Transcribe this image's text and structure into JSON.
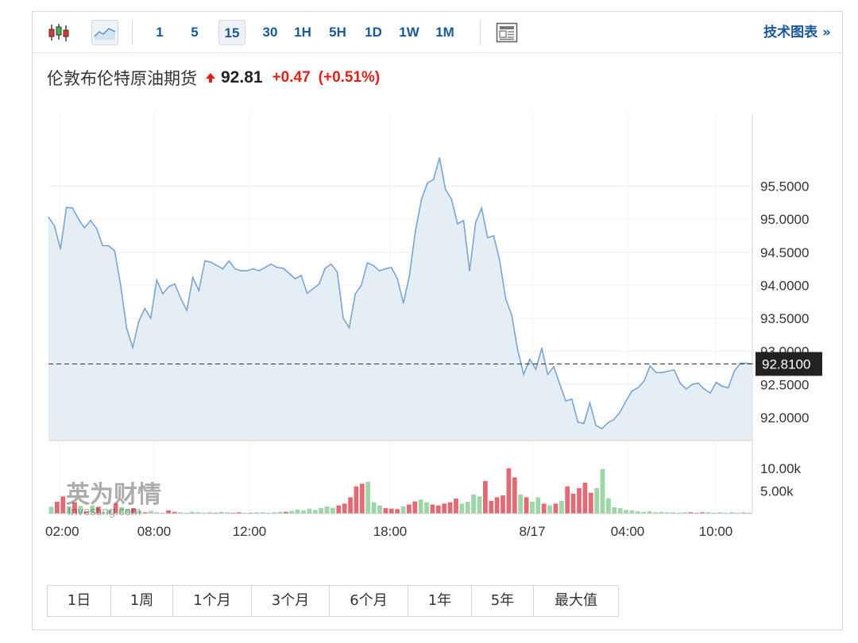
{
  "toolbar": {
    "intervals": [
      "1",
      "5",
      "15",
      "30",
      "1H",
      "5H",
      "1D",
      "1W",
      "1M"
    ],
    "active_interval": "15",
    "tech_chart_label": "技术图表 »"
  },
  "header": {
    "name": "伦敦布伦特原油期货",
    "price": "92.81",
    "change": "+0.47",
    "change_pct": "(+0.51%)"
  },
  "colors": {
    "line": "#7ba5cf",
    "area": "#e6eef5",
    "up": "#e06b74",
    "down": "#9fd6a8",
    "link": "#1d5896",
    "change": "#e0201b"
  },
  "watermark": {
    "cn": "英为财情",
    "en": "Investing.com"
  },
  "price_label": "92.8100",
  "ranges": [
    "1日",
    "1周",
    "1个月",
    "3个月",
    "6个月",
    "1年",
    "5年",
    "最大值"
  ],
  "chart_data": {
    "type": "line",
    "x_tick_labels": [
      "02:00",
      "08:00",
      "12:00",
      "18:00",
      "8/17",
      "04:00",
      "10:00"
    ],
    "y_tick_labels": [
      "95.5000",
      "95.0000",
      "94.5000",
      "94.0000",
      "93.5000",
      "93.0000",
      "92.5000",
      "92.0000"
    ],
    "ylim": [
      91.65,
      96.6
    ],
    "last_value": 92.81,
    "series": [
      {
        "values": [
          95.03,
          94.9,
          94.55,
          95.18,
          95.17,
          95.0,
          94.87,
          94.98,
          94.86,
          94.6,
          94.6,
          94.52,
          94.0,
          93.35,
          93.06,
          93.45,
          93.65,
          93.5,
          94.08,
          93.87,
          93.98,
          94.02,
          93.8,
          93.62,
          94.12,
          93.92,
          94.37,
          94.35,
          94.3,
          94.25,
          94.37,
          94.25,
          94.22,
          94.22,
          94.25,
          94.22,
          94.27,
          94.32,
          94.27,
          94.26,
          94.18,
          94.1,
          94.15,
          93.88,
          93.95,
          94.02,
          94.26,
          94.32,
          94.2,
          93.5,
          93.36,
          93.87,
          94.0,
          94.34,
          94.3,
          94.22,
          94.25,
          94.27,
          94.1,
          93.73,
          94.15,
          94.82,
          95.3,
          95.55,
          95.6,
          95.93,
          95.45,
          95.3,
          94.93,
          94.98,
          94.22,
          94.95,
          95.17,
          94.72,
          94.75,
          94.38,
          93.8,
          93.55,
          93.02,
          92.65,
          92.88,
          92.73,
          93.05,
          92.65,
          92.77,
          92.5,
          92.25,
          92.28,
          91.93,
          91.91,
          92.22,
          91.88,
          91.83,
          91.92,
          91.97,
          92.08,
          92.25,
          92.4,
          92.45,
          92.55,
          92.78,
          92.68,
          92.68,
          92.7,
          92.72,
          92.52,
          92.43,
          92.5,
          92.52,
          92.43,
          92.37,
          92.53,
          92.47,
          92.45,
          92.7,
          92.82,
          92.82,
          92.81
        ]
      }
    ],
    "volume": {
      "tick_labels": [
        "10.00k",
        "5.00k"
      ],
      "max": 14000,
      "bars": [
        {
          "v": 1500,
          "up": false
        },
        {
          "v": 2600,
          "up": true
        },
        {
          "v": 3800,
          "up": true
        },
        {
          "v": 1600,
          "up": false
        },
        {
          "v": 2500,
          "up": true
        },
        {
          "v": 1700,
          "up": false
        },
        {
          "v": 400,
          "up": true
        },
        {
          "v": 1800,
          "up": false
        },
        {
          "v": 1500,
          "up": true
        },
        {
          "v": 300,
          "up": false
        },
        {
          "v": 800,
          "up": false
        },
        {
          "v": 2200,
          "up": true
        },
        {
          "v": 1400,
          "up": false
        },
        {
          "v": 1000,
          "up": false
        },
        {
          "v": 1200,
          "up": true
        },
        {
          "v": 600,
          "up": false
        },
        {
          "v": 300,
          "up": true
        },
        {
          "v": 600,
          "up": false
        },
        {
          "v": 300,
          "up": false
        },
        {
          "v": 200,
          "up": false
        },
        {
          "v": 700,
          "up": true
        },
        {
          "v": 400,
          "up": true
        },
        {
          "v": 300,
          "up": false
        },
        {
          "v": 200,
          "up": false
        },
        {
          "v": 400,
          "up": false
        },
        {
          "v": 300,
          "up": false
        },
        {
          "v": 200,
          "up": false
        },
        {
          "v": 300,
          "up": false
        },
        {
          "v": 200,
          "up": true
        },
        {
          "v": 400,
          "up": false
        },
        {
          "v": 300,
          "up": false
        },
        {
          "v": 200,
          "up": true
        },
        {
          "v": 300,
          "up": true
        },
        {
          "v": 200,
          "up": false
        },
        {
          "v": 200,
          "up": true
        },
        {
          "v": 300,
          "up": false
        },
        {
          "v": 300,
          "up": false
        },
        {
          "v": 200,
          "up": false
        },
        {
          "v": 300,
          "up": false
        },
        {
          "v": 400,
          "up": false
        },
        {
          "v": 400,
          "up": true
        },
        {
          "v": 600,
          "up": false
        },
        {
          "v": 900,
          "up": false
        },
        {
          "v": 700,
          "up": false
        },
        {
          "v": 1100,
          "up": false
        },
        {
          "v": 800,
          "up": false
        },
        {
          "v": 1200,
          "up": false
        },
        {
          "v": 1600,
          "up": false
        },
        {
          "v": 1300,
          "up": false
        },
        {
          "v": 1800,
          "up": true
        },
        {
          "v": 2200,
          "up": true
        },
        {
          "v": 3600,
          "up": true
        },
        {
          "v": 6000,
          "up": true
        },
        {
          "v": 6600,
          "up": true
        },
        {
          "v": 7000,
          "up": false
        },
        {
          "v": 2500,
          "up": false
        },
        {
          "v": 1800,
          "up": false
        },
        {
          "v": 1200,
          "up": true
        },
        {
          "v": 1100,
          "up": true
        },
        {
          "v": 1000,
          "up": true
        },
        {
          "v": 1600,
          "up": false
        },
        {
          "v": 2000,
          "up": true
        },
        {
          "v": 2700,
          "up": true
        },
        {
          "v": 3100,
          "up": false
        },
        {
          "v": 2500,
          "up": false
        },
        {
          "v": 2000,
          "up": true
        },
        {
          "v": 1800,
          "up": true
        },
        {
          "v": 2200,
          "up": true
        },
        {
          "v": 2500,
          "up": true
        },
        {
          "v": 3300,
          "up": true
        },
        {
          "v": 2200,
          "up": false
        },
        {
          "v": 2600,
          "up": false
        },
        {
          "v": 4200,
          "up": false
        },
        {
          "v": 3800,
          "up": false
        },
        {
          "v": 7200,
          "up": true
        },
        {
          "v": 2800,
          "up": true
        },
        {
          "v": 3600,
          "up": true
        },
        {
          "v": 4000,
          "up": true
        },
        {
          "v": 10000,
          "up": true
        },
        {
          "v": 8000,
          "up": true
        },
        {
          "v": 4200,
          "up": false
        },
        {
          "v": 3600,
          "up": true
        },
        {
          "v": 2600,
          "up": false
        },
        {
          "v": 3600,
          "up": false
        },
        {
          "v": 2200,
          "up": true
        },
        {
          "v": 1800,
          "up": false
        },
        {
          "v": 2200,
          "up": true
        },
        {
          "v": 2800,
          "up": false
        },
        {
          "v": 6000,
          "up": true
        },
        {
          "v": 4400,
          "up": true
        },
        {
          "v": 5600,
          "up": true
        },
        {
          "v": 6800,
          "up": true
        },
        {
          "v": 4600,
          "up": true
        },
        {
          "v": 5600,
          "up": false
        },
        {
          "v": 9800,
          "up": false
        },
        {
          "v": 3400,
          "up": false
        },
        {
          "v": 1400,
          "up": false
        },
        {
          "v": 1200,
          "up": false
        },
        {
          "v": 800,
          "up": false
        },
        {
          "v": 700,
          "up": false
        },
        {
          "v": 500,
          "up": false
        },
        {
          "v": 400,
          "up": false
        },
        {
          "v": 500,
          "up": false
        },
        {
          "v": 300,
          "up": false
        },
        {
          "v": 400,
          "up": false
        },
        {
          "v": 300,
          "up": false
        },
        {
          "v": 300,
          "up": false
        },
        {
          "v": 200,
          "up": false
        },
        {
          "v": 300,
          "up": false
        },
        {
          "v": 300,
          "up": true
        },
        {
          "v": 200,
          "up": true
        },
        {
          "v": 300,
          "up": true
        },
        {
          "v": 300,
          "up": false
        },
        {
          "v": 200,
          "up": false
        },
        {
          "v": 300,
          "up": false
        },
        {
          "v": 200,
          "up": false
        },
        {
          "v": 300,
          "up": false
        },
        {
          "v": 200,
          "up": false
        },
        {
          "v": 300,
          "up": false
        },
        {
          "v": 200,
          "up": false
        }
      ]
    }
  }
}
